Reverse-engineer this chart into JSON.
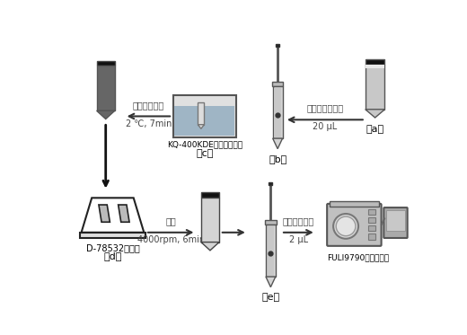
{
  "background_color": "#ffffff",
  "labels": {
    "a": "（a）",
    "b": "（b）",
    "c": "（c）",
    "d": "（d）",
    "e": "（e）",
    "arrow1_text1": "加入氯甲酸丁酯",
    "arrow1_text2": "20 μL",
    "arrow2_text1": "超声辅助乳化",
    "arrow2_text2": "2 ℃, 7min",
    "sonic_label": "KQ-400KDE超声波清洗器",
    "arrow3_text1": "离心",
    "arrow3_text2": "4000rpm, 6min",
    "arrow4_text1": "气相色谱分析",
    "arrow4_text2": "2 μL",
    "centrifuge_label": "D-78532离心机",
    "gc_label": "FULI9790气相色谱仪"
  }
}
